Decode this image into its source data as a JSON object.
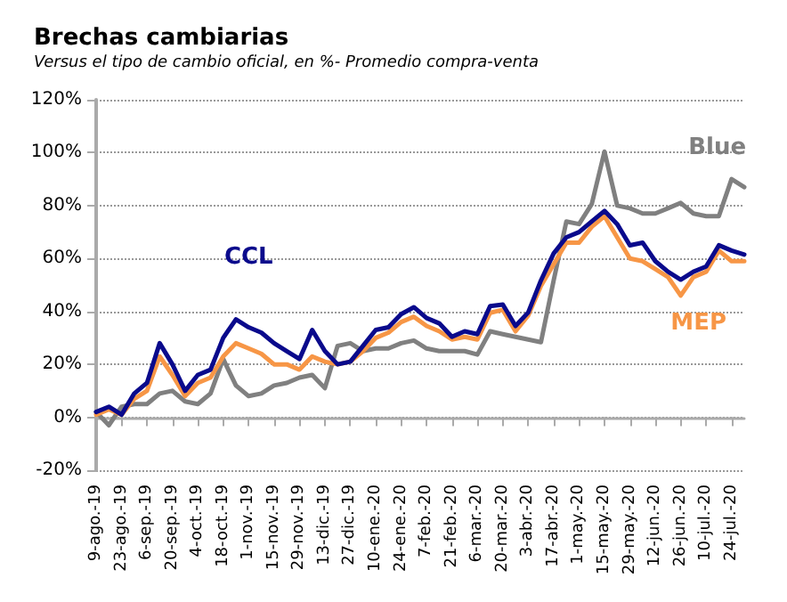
{
  "chart_data": {
    "type": "line",
    "title": "Brechas cambiarias",
    "subtitle": "Versus el tipo de cambio oficial, en %- Promedio compra-venta",
    "categories": [
      "9-ago.-19",
      null,
      "23-ago.-19",
      null,
      "6-sep.-19",
      null,
      "20-sep.-19",
      null,
      "4-oct.-19",
      null,
      "18-oct.-19",
      null,
      "1-nov.-19",
      null,
      "15-nov.-19",
      null,
      "29-nov.-19",
      null,
      "13-dic.-19",
      null,
      "27-dic.-19",
      null,
      "10-ene.-20",
      null,
      "24-ene.-20",
      null,
      "7-feb.-20",
      null,
      "21-feb.-20",
      null,
      "6-mar.-20",
      null,
      "20-mar.-20",
      null,
      "3-abr.-20",
      null,
      "17-abr.-20",
      null,
      "1-may.-20",
      null,
      "15-may.-20",
      null,
      "29-may.-20",
      null,
      "12-jun.-20",
      null,
      "26-jun.-20",
      null,
      "10-jul.-20",
      null,
      "24-jul.-20",
      null
    ],
    "series": [
      {
        "name": "CCL",
        "color": "#0a0a8c",
        "values": [
          2,
          4,
          1,
          9,
          13,
          28,
          20,
          10,
          16,
          18,
          30,
          37,
          34,
          32,
          28,
          25,
          22,
          33,
          25,
          20,
          21,
          27,
          33,
          34,
          39,
          41.6,
          37.5,
          35.5,
          30.4,
          32.5,
          31.4,
          42,
          42.6,
          34.5,
          39.6,
          51.7,
          61.9,
          68,
          70,
          74,
          78,
          73,
          65,
          66,
          59,
          55,
          52,
          55,
          57,
          65,
          63,
          61.5
        ]
      },
      {
        "name": "MEP",
        "color": "#f79646",
        "values": [
          1,
          3,
          1,
          7,
          10,
          23,
          16,
          8,
          13,
          15,
          23,
          28,
          26,
          24,
          20,
          20,
          18,
          23,
          21,
          20,
          21,
          25,
          30,
          32,
          36,
          38,
          34.5,
          32.5,
          29.4,
          30.4,
          29.4,
          39.5,
          40.6,
          32.5,
          38.5,
          49.7,
          57.8,
          66,
          66,
          72,
          76,
          68,
          60,
          59,
          56,
          53,
          46,
          53,
          55,
          63,
          59,
          59
        ]
      },
      {
        "name": "Blue",
        "color": "#808080",
        "values": [
          2,
          -3,
          4,
          5,
          5,
          9,
          10,
          6,
          5,
          9,
          22,
          12,
          8,
          9,
          12,
          13,
          15,
          16,
          11,
          27,
          28,
          25,
          26,
          26,
          28,
          29,
          26,
          25,
          25,
          25,
          23.7,
          32.5,
          31.4,
          30.4,
          29.4,
          28.4,
          51.7,
          74,
          73,
          80.6,
          100.4,
          80,
          79,
          77,
          77,
          79,
          81,
          77,
          76,
          76,
          90,
          87
        ]
      }
    ],
    "ylim": [
      -20,
      120
    ],
    "yticks": [
      {
        "value": -20,
        "label": "-20%"
      },
      {
        "value": 0,
        "label": "0%"
      },
      {
        "value": 20,
        "label": "20%"
      },
      {
        "value": 40,
        "label": "40%"
      },
      {
        "value": 60,
        "label": "60%"
      },
      {
        "value": 80,
        "label": "80%"
      },
      {
        "value": 100,
        "label": "100%"
      },
      {
        "value": 120,
        "label": "120%"
      }
    ],
    "grid": "y",
    "legend": false,
    "marker": "none",
    "line_style": "solid"
  }
}
